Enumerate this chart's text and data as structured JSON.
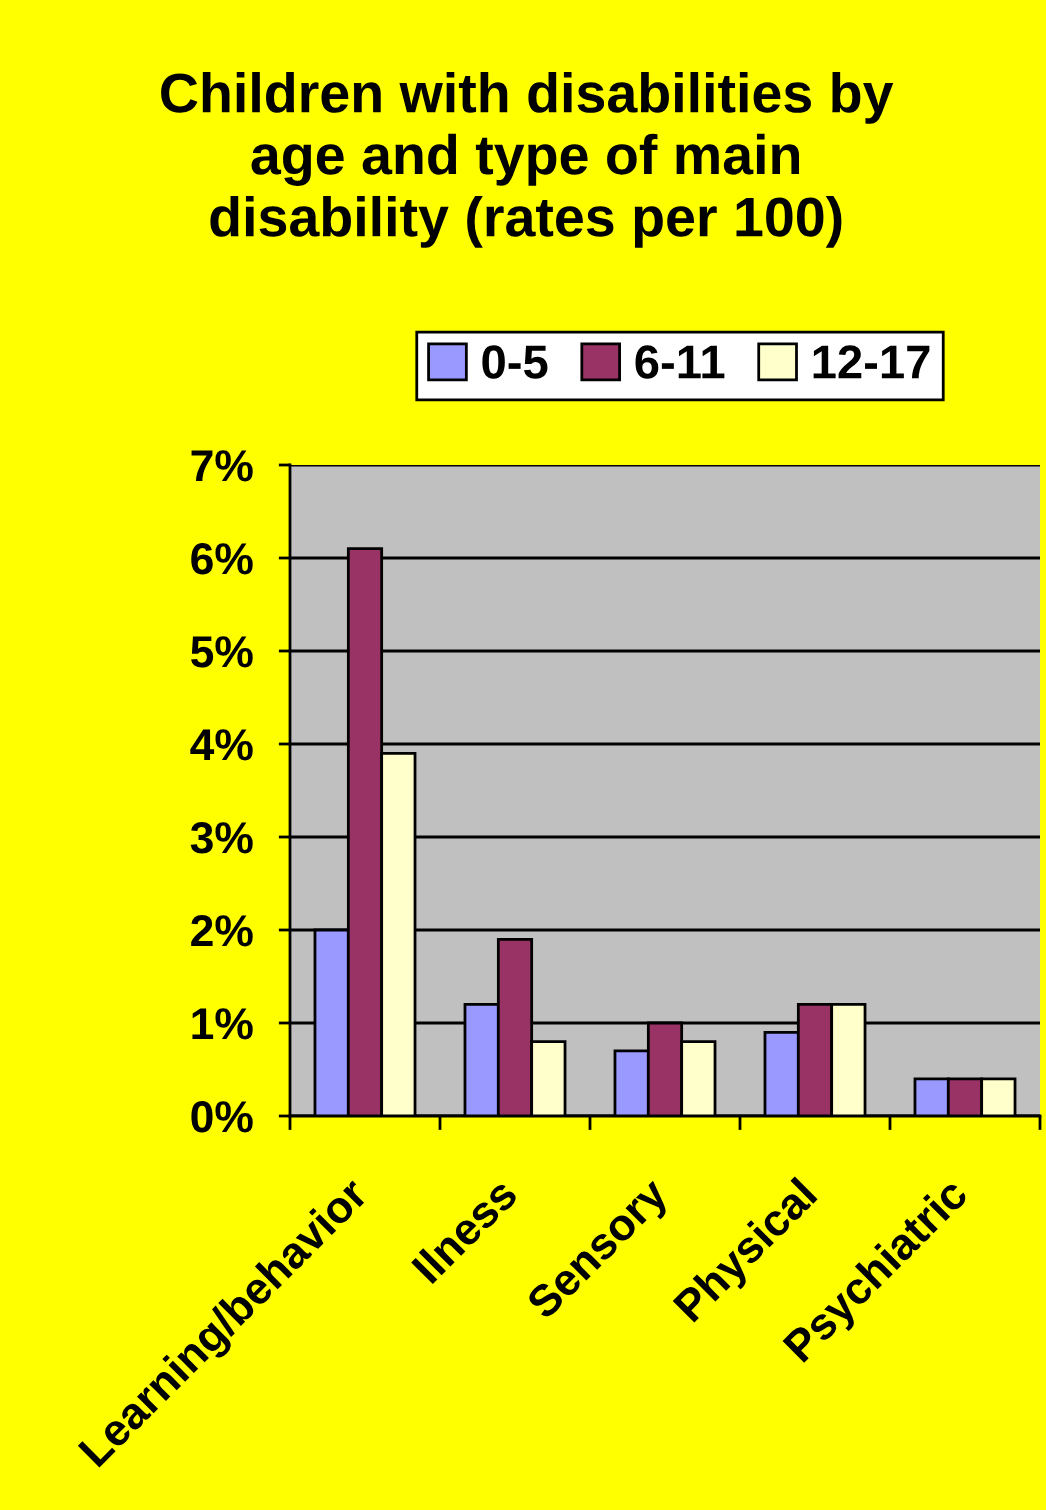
{
  "chart_data": {
    "type": "bar",
    "title": "Children with disabilities by\nage and type of main\ndisability (rates per 100)",
    "categories": [
      "Learning/behavior",
      "Ilness",
      "Sensory",
      "Physical",
      "Psychiatric"
    ],
    "series": [
      {
        "name": "0-5",
        "color": "#9999ff",
        "values": [
          2.0,
          1.2,
          0.7,
          0.9,
          0.4
        ]
      },
      {
        "name": "6-11",
        "color": "#993366",
        "values": [
          6.1,
          1.9,
          1.0,
          1.2,
          0.4
        ]
      },
      {
        "name": "12-17",
        "color": "#ffffcc",
        "values": [
          3.9,
          0.8,
          0.8,
          1.2,
          0.4
        ]
      }
    ],
    "ylim": [
      0,
      7
    ],
    "yticks": [
      {
        "value": 0,
        "label": "0%"
      },
      {
        "value": 1,
        "label": "1%"
      },
      {
        "value": 2,
        "label": "2%"
      },
      {
        "value": 3,
        "label": "3%"
      },
      {
        "value": 4,
        "label": "4%"
      },
      {
        "value": 5,
        "label": "5%"
      },
      {
        "value": 6,
        "label": "6%"
      },
      {
        "value": 7,
        "label": "7%"
      }
    ],
    "grid": "y",
    "legend": "top"
  }
}
